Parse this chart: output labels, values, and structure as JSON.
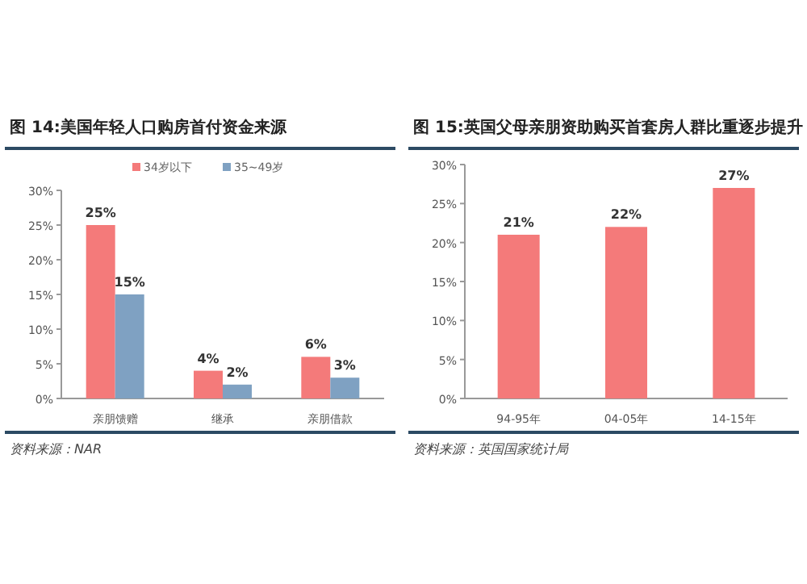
{
  "chart_data": [
    {
      "type": "bar",
      "title": "图 14:美国年轻人口购房首付资金来源",
      "categories": [
        "亲朋馈赠",
        "继承",
        "亲朋借款"
      ],
      "series": [
        {
          "name": "34岁以下",
          "color": "#f47a7a",
          "values": [
            25,
            4,
            6
          ]
        },
        {
          "name": "35~49岁",
          "color": "#7fa1c2",
          "values": [
            15,
            2,
            3
          ]
        }
      ],
      "ylim": [
        0,
        30
      ],
      "yticks": [
        {
          "value": 0,
          "label": "0%"
        },
        {
          "value": 5,
          "label": "5%"
        },
        {
          "value": 10,
          "label": "10%"
        },
        {
          "value": 15,
          "label": "15%"
        },
        {
          "value": 20,
          "label": "20%"
        },
        {
          "value": 25,
          "label": "25%"
        },
        {
          "value": 30,
          "label": "30%"
        }
      ],
      "value_labels": [
        [
          "25%",
          "4%",
          "6%"
        ],
        [
          "15%",
          "2%",
          "3%"
        ]
      ],
      "legend": "top",
      "grid": false,
      "annotations": [
        "资料来源：NAR"
      ]
    },
    {
      "type": "bar",
      "title": "图 15:英国父母亲朋资助购买首套房人群比重逐步提升",
      "categories": [
        "94-95年",
        "04-05年",
        "14-15年"
      ],
      "series": [
        {
          "color": "#f47a7a",
          "values": [
            21,
            22,
            27
          ]
        }
      ],
      "ylim": [
        0,
        30
      ],
      "yticks": [
        {
          "value": 0,
          "label": "0%"
        },
        {
          "value": 5,
          "label": "5%"
        },
        {
          "value": 10,
          "label": "10%"
        },
        {
          "value": 15,
          "label": "15%"
        },
        {
          "value": 20,
          "label": "20%"
        },
        {
          "value": 25,
          "label": "25%"
        },
        {
          "value": 30,
          "label": "30%"
        }
      ],
      "value_labels": [
        [
          "21%",
          "22%",
          "27%"
        ]
      ],
      "grid": false,
      "annotations": [
        "资料来源：英国国家统计局"
      ]
    }
  ]
}
